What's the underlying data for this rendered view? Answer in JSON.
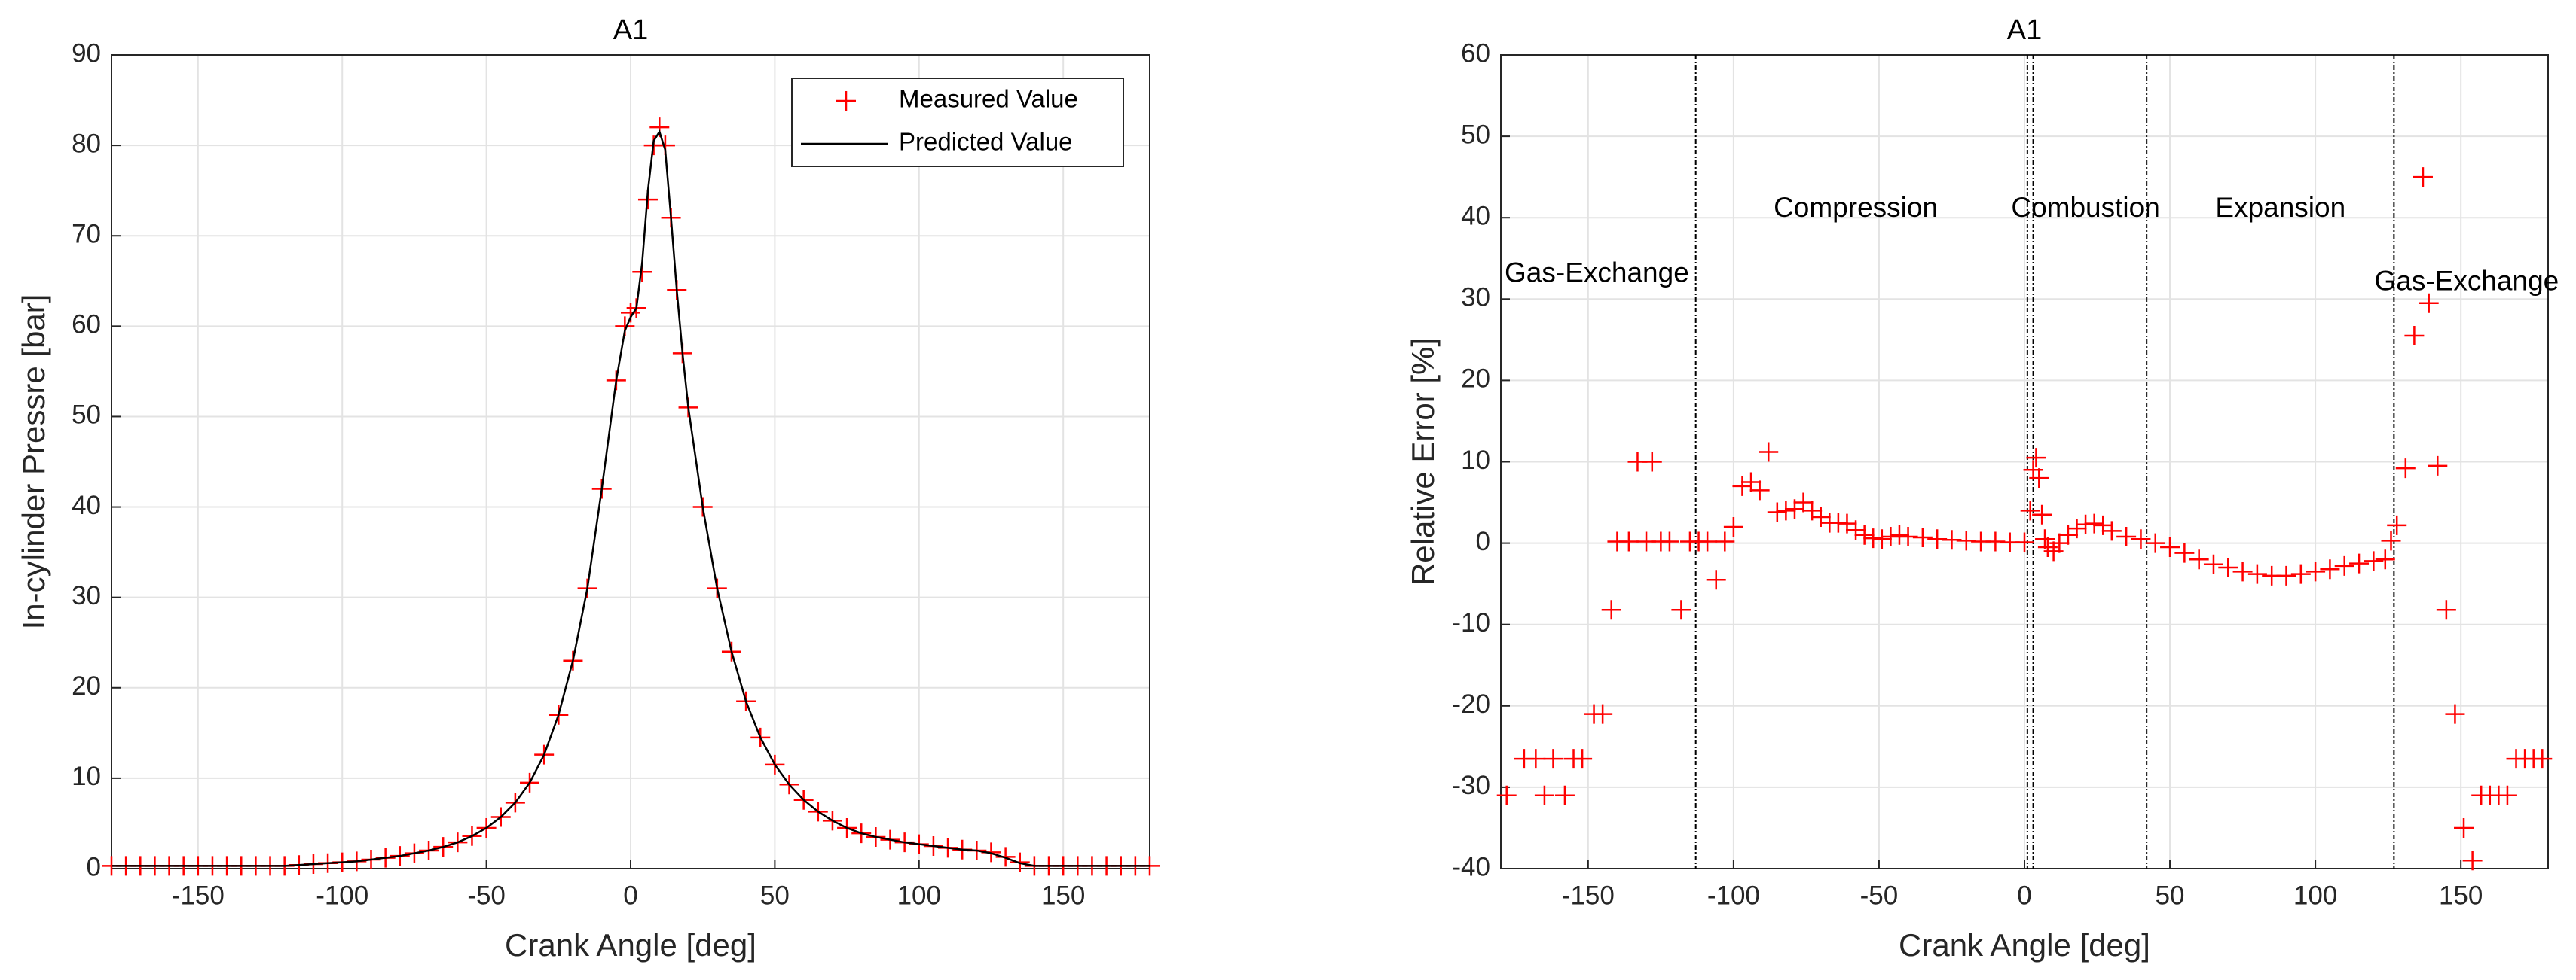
{
  "chart_data": [
    {
      "type": "scatter_line",
      "title": "A1",
      "x_label": "Crank Angle [deg]",
      "y_label": "In-cylinder Pressre [bar]",
      "xlim": [
        -180,
        180
      ],
      "xticks": [
        -150,
        -100,
        -50,
        0,
        50,
        100,
        150
      ],
      "ylim": [
        0,
        90
      ],
      "yticks": [
        0,
        10,
        20,
        30,
        40,
        50,
        60,
        70,
        80,
        90
      ],
      "grid": true,
      "legend": "upper right",
      "x": [
        -180,
        -175,
        -170,
        -165,
        -160,
        -155,
        -150,
        -145,
        -140,
        -135,
        -130,
        -125,
        -120,
        -115,
        -110,
        -105,
        -100,
        -95,
        -90,
        -85,
        -80,
        -75,
        -70,
        -65,
        -60,
        -55,
        -50,
        -45,
        -40,
        -35,
        -30,
        -25,
        -20,
        -15,
        -10,
        -5,
        -2,
        0,
        2,
        4,
        6,
        8,
        10,
        12,
        14,
        16,
        18,
        20,
        25,
        30,
        35,
        40,
        45,
        50,
        55,
        60,
        65,
        70,
        75,
        80,
        85,
        90,
        95,
        100,
        105,
        110,
        115,
        120,
        125,
        130,
        135,
        140,
        145,
        150,
        155,
        160,
        165,
        170,
        175,
        180
      ],
      "series": [
        {
          "name": "Measured Value",
          "color": "#ff0000",
          "marker": "+",
          "values": [
            0.3,
            0.3,
            0.3,
            0.3,
            0.3,
            0.3,
            0.3,
            0.3,
            0.3,
            0.3,
            0.3,
            0.3,
            0.3,
            0.4,
            0.5,
            0.6,
            0.7,
            0.8,
            1.0,
            1.2,
            1.4,
            1.7,
            2.0,
            2.4,
            2.9,
            3.6,
            4.5,
            5.7,
            7.3,
            9.5,
            12.6,
            17,
            23,
            31,
            42,
            54,
            60,
            61.5,
            62,
            66,
            74,
            80,
            82,
            80,
            72,
            64,
            57,
            51,
            40,
            31,
            24,
            18.5,
            14.5,
            11.5,
            9.3,
            7.6,
            6.3,
            5.3,
            4.5,
            3.9,
            3.5,
            3.2,
            2.9,
            2.7,
            2.5,
            2.3,
            2.1,
            2.0,
            1.8,
            1.3,
            0.7,
            0.3,
            0.3,
            0.3,
            0.3,
            0.3,
            0.3,
            0.3,
            0.3,
            0.3
          ]
        },
        {
          "name": "Predicted Value",
          "color": "#000000",
          "marker": "line",
          "values": [
            0.3,
            0.3,
            0.3,
            0.3,
            0.3,
            0.3,
            0.3,
            0.3,
            0.3,
            0.3,
            0.3,
            0.3,
            0.3,
            0.4,
            0.5,
            0.6,
            0.7,
            0.8,
            1.0,
            1.2,
            1.4,
            1.7,
            2.0,
            2.4,
            2.9,
            3.6,
            4.5,
            5.7,
            7.3,
            9.5,
            12.6,
            17,
            23,
            31,
            42,
            54,
            59.5,
            61,
            62,
            67,
            75,
            80.5,
            81.5,
            79.5,
            72,
            64,
            57,
            51,
            40,
            31,
            24,
            18.5,
            14.5,
            11.5,
            9.3,
            7.6,
            6.3,
            5.3,
            4.5,
            3.9,
            3.5,
            3.2,
            2.9,
            2.7,
            2.5,
            2.3,
            2.1,
            2.0,
            1.7,
            1.2,
            0.6,
            0.3,
            0.3,
            0.3,
            0.3,
            0.3,
            0.3,
            0.3,
            0.3,
            0.3
          ]
        }
      ]
    },
    {
      "type": "scatter",
      "title": "A1",
      "x_label": "Crank Angle [deg]",
      "y_label": "Relative Error [%]",
      "xlim": [
        -180,
        180
      ],
      "xticks": [
        -150,
        -100,
        -50,
        0,
        50,
        100,
        150
      ],
      "ylim": [
        -40,
        60
      ],
      "yticks": [
        -40,
        -30,
        -20,
        -10,
        0,
        10,
        20,
        30,
        40,
        50,
        60
      ],
      "grid": true,
      "vlines": [
        -113,
        1,
        3,
        42,
        127
      ],
      "annotations": [
        {
          "text": "Gas-Exchange",
          "x": -147,
          "y": 33
        },
        {
          "text": "Compression",
          "x": -58,
          "y": 41
        },
        {
          "text": "Combustion",
          "x": 21,
          "y": 41
        },
        {
          "text": "Expansion",
          "x": 88,
          "y": 41
        },
        {
          "text": "Gas-Exchange",
          "x": 152,
          "y": 32
        }
      ],
      "x": [
        -178,
        -172,
        -168,
        -165,
        -162,
        -158,
        -155,
        -152,
        -148,
        -145,
        -142,
        -140,
        -136,
        -133,
        -130,
        -128,
        -125,
        -122,
        -118,
        -115,
        -112,
        -109,
        -106,
        -103,
        -100,
        -97,
        -94,
        -91,
        -88,
        -85,
        -82,
        -79,
        -76,
        -73,
        -70,
        -67,
        -64,
        -61,
        -58,
        -55,
        -52,
        -49,
        -46,
        -43,
        -40,
        -35,
        -30,
        -25,
        -20,
        -15,
        -10,
        -5,
        0,
        2,
        3,
        4,
        5,
        6,
        7,
        8,
        10,
        12,
        15,
        18,
        21,
        24,
        27,
        30,
        35,
        40,
        45,
        50,
        55,
        60,
        65,
        70,
        75,
        80,
        85,
        90,
        95,
        100,
        105,
        110,
        115,
        120,
        124,
        126,
        128,
        131,
        134,
        137,
        139,
        142,
        145,
        148,
        151,
        154,
        157,
        160,
        163,
        166,
        169,
        172,
        175,
        178
      ],
      "series": [
        {
          "name": "Relative Error",
          "color": "#ff0000",
          "marker": "+",
          "values": [
            -31,
            -26.5,
            -26.5,
            -31,
            -26.5,
            -31,
            -26.5,
            -26.5,
            -21,
            -21,
            -8.2,
            0.2,
            0.2,
            10,
            0.2,
            10,
            0.2,
            0.2,
            -8.2,
            0.2,
            0.2,
            0.2,
            -4.5,
            0.2,
            2,
            7,
            7.5,
            6.5,
            11.2,
            3.8,
            4,
            4.2,
            5,
            4,
            3.2,
            2.5,
            2.5,
            2.4,
            1.6,
            1,
            0.6,
            0.5,
            0.8,
            1,
            0.8,
            0.7,
            0.5,
            0.4,
            0.3,
            0.2,
            0.2,
            0.1,
            0.1,
            4,
            9,
            10.5,
            8,
            3.5,
            0.5,
            -0.5,
            -1,
            0,
            1,
            1.8,
            2.3,
            2.4,
            2.2,
            1.5,
            0.8,
            0.5,
            0,
            -0.5,
            -1.2,
            -2,
            -2.6,
            -3,
            -3.5,
            -3.8,
            -4,
            -4,
            -3.8,
            -3.5,
            -3.2,
            -2.8,
            -2.5,
            -2.2,
            -2,
            0.3,
            2.2,
            9.2,
            25.5,
            45,
            29.5,
            9.5,
            -8.2,
            -21,
            -35,
            -39,
            -31,
            -31,
            -31,
            -31,
            -26.5,
            -26.5,
            -26.5,
            -26.5
          ]
        }
      ]
    }
  ]
}
